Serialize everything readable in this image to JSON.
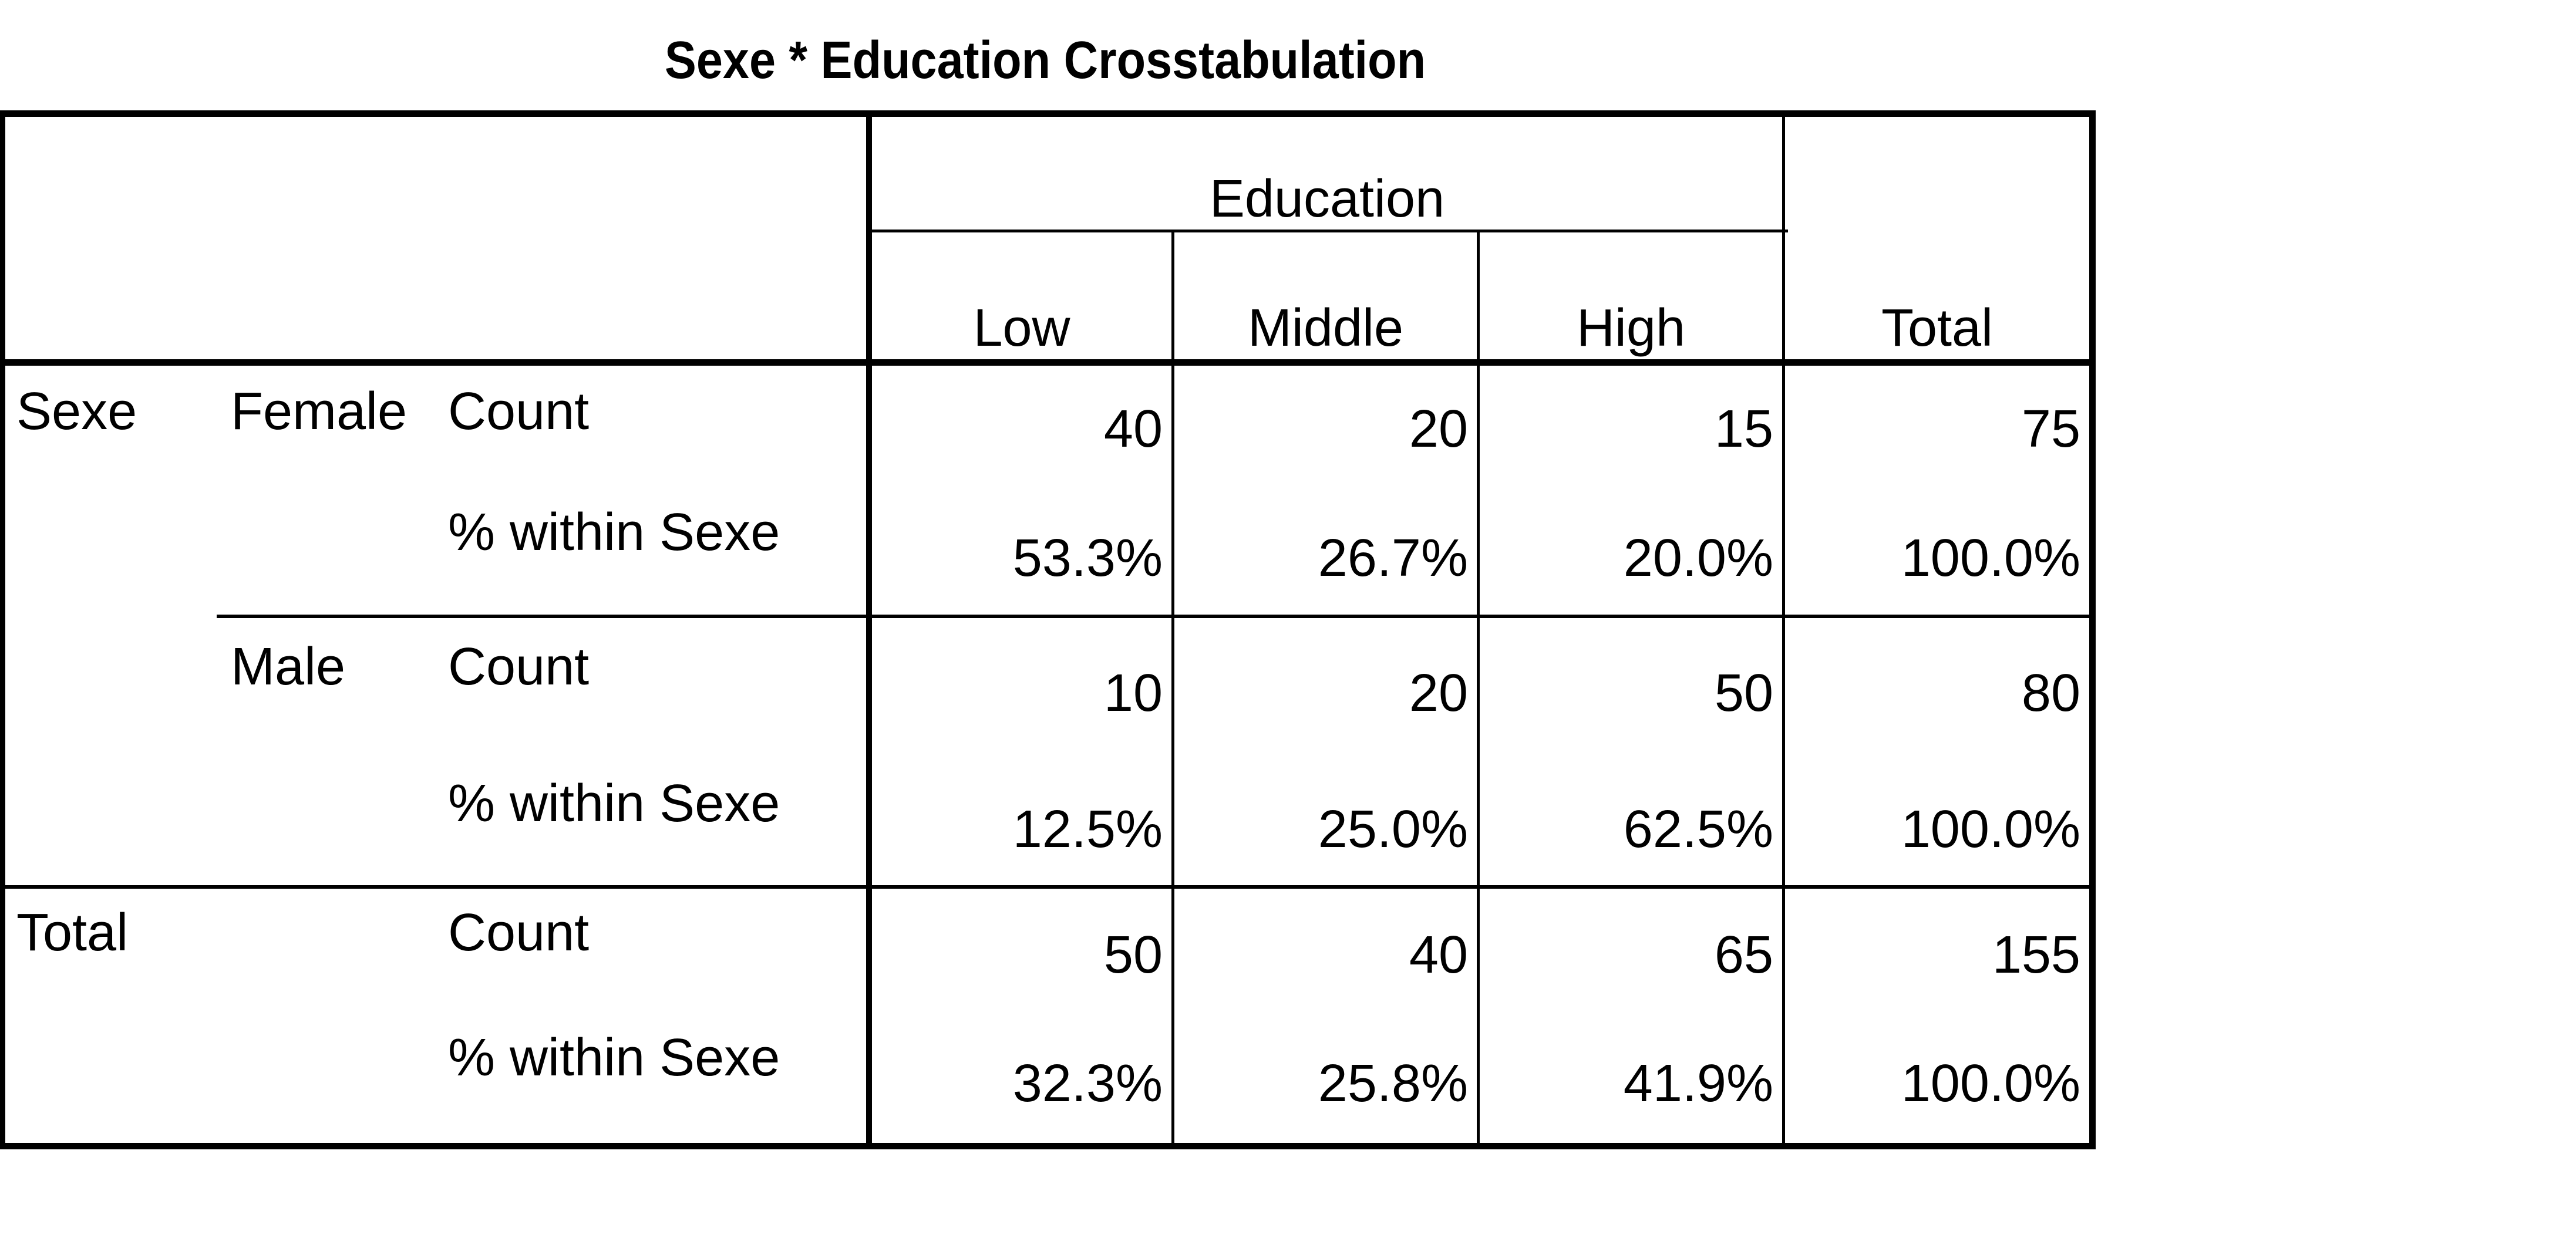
{
  "title": "Sexe * Education Crosstabulation",
  "header": {
    "group_label": "Education",
    "columns": [
      "Low",
      "Middle",
      "High"
    ],
    "total_label": "Total"
  },
  "rows": {
    "var_label": "Sexe",
    "female": {
      "label": "Female",
      "count_label": "Count",
      "pct_label": "% within Sexe",
      "count": [
        "40",
        "20",
        "15",
        "75"
      ],
      "pct": [
        "53.3%",
        "26.7%",
        "20.0%",
        "100.0%"
      ]
    },
    "male": {
      "label": "Male",
      "count_label": "Count",
      "pct_label": "% within Sexe",
      "count": [
        "10",
        "20",
        "50",
        "80"
      ],
      "pct": [
        "12.5%",
        "25.0%",
        "62.5%",
        "100.0%"
      ]
    },
    "total": {
      "label": "Total",
      "count_label": "Count",
      "pct_label": "% within Sexe",
      "count": [
        "50",
        "40",
        "65",
        "155"
      ],
      "pct": [
        "32.3%",
        "25.8%",
        "41.9%",
        "100.0%"
      ]
    }
  }
}
